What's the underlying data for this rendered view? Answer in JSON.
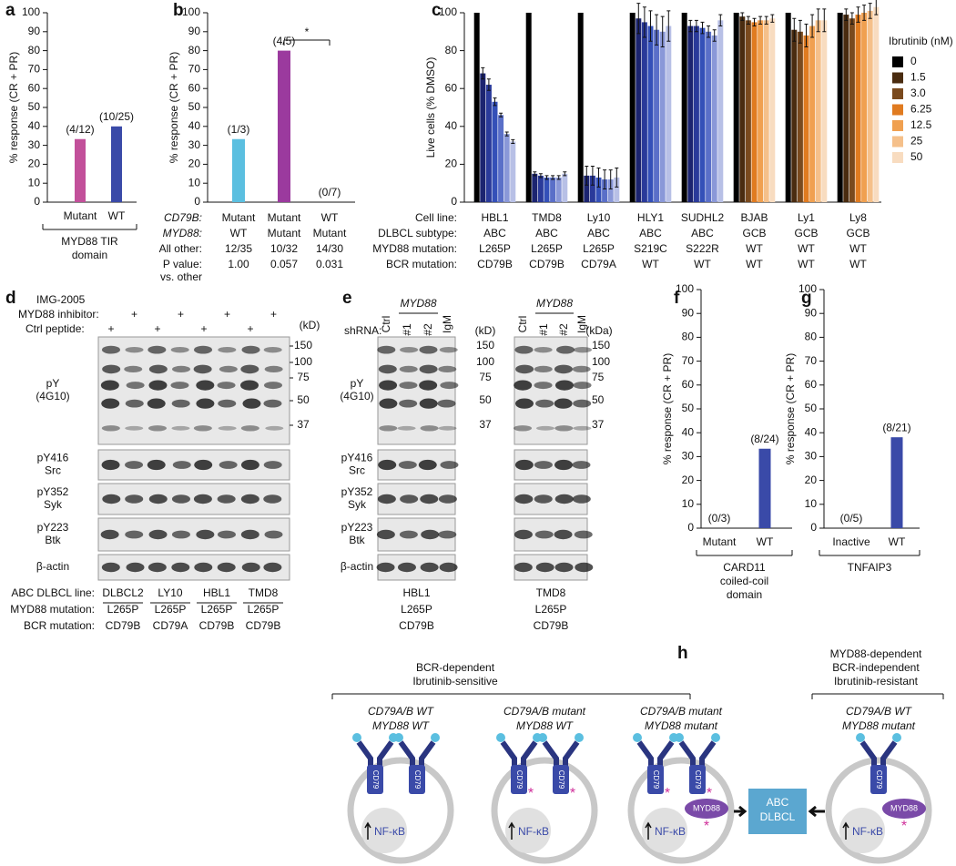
{
  "panel_labels": [
    "a",
    "b",
    "c",
    "d",
    "e",
    "f",
    "g",
    "h"
  ],
  "chart_data": [
    {
      "type": "bar",
      "y_label": "% response (CR + PR)",
      "categories": [
        "Mutant",
        "WT"
      ],
      "values": [
        33.3,
        40
      ],
      "annotations": [
        "(4/12)",
        "(10/25)"
      ],
      "colors": [
        "#c2509a",
        "#3a4aa8"
      ],
      "ylim": [
        0,
        100
      ],
      "yticks": [
        0,
        10,
        20,
        30,
        40,
        50,
        60,
        70,
        80,
        90,
        100
      ],
      "group_label": [
        "MYD88 TIR",
        "domain"
      ]
    },
    {
      "type": "bar",
      "y_label": "% response (CR + PR)",
      "values": [
        33.3,
        80,
        0
      ],
      "annotations": [
        "(1/3)",
        "(4/5)",
        "(0/7)"
      ],
      "colors": [
        "#5bbfe0",
        "#9b3a9e",
        "#444444"
      ],
      "ylim": [
        0,
        100
      ],
      "yticks": [
        0,
        10,
        20,
        30,
        40,
        50,
        60,
        70,
        80,
        90,
        100
      ],
      "significance": "*",
      "table": [
        {
          "label": [
            "CD79B:"
          ],
          "cells": [
            "Mutant",
            "Mutant",
            "WT"
          ]
        },
        {
          "label": [
            "MYD88:"
          ],
          "cells": [
            "WT",
            "Mutant",
            "Mutant"
          ]
        },
        {
          "label": [
            "All other:"
          ],
          "cells": [
            "12/35",
            "10/32",
            "14/30"
          ]
        },
        {
          "label": [
            "P value:",
            "vs. other"
          ],
          "cells": [
            "1.00",
            "0.057",
            "0.031"
          ]
        }
      ]
    },
    {
      "type": "grouped_bar",
      "y_label": "Live cells (% DMSO)",
      "ylim": [
        0,
        100
      ],
      "yticks": [
        0,
        20,
        40,
        60,
        80,
        100
      ],
      "legend_title": "Ibrutinib (nM)",
      "table": [
        {
          "label": [
            "Cell line:"
          ],
          "cells": [
            "HBL1",
            "TMD8",
            "Ly10",
            "HLY1",
            "SUDHL2",
            "BJAB",
            "Ly1",
            "Ly8"
          ]
        },
        {
          "label": [
            "DLBCL subtype:"
          ],
          "cells": [
            "ABC",
            "ABC",
            "ABC",
            "ABC",
            "ABC",
            "GCB",
            "GCB",
            "GCB"
          ]
        },
        {
          "label": [
            "MYD88 mutation:"
          ],
          "cells": [
            "L265P",
            "L265P",
            "L265P",
            "S219C",
            "S222R",
            "WT",
            "WT",
            "WT"
          ]
        },
        {
          "label": [
            "BCR mutation:"
          ],
          "cells": [
            "CD79B",
            "CD79B",
            "CD79A",
            "WT",
            "WT",
            "WT",
            "WT",
            "WT"
          ]
        }
      ],
      "series": [
        {
          "name": "0",
          "color": "#000000",
          "colors": {
            "ABC": "#000000",
            "GCB": "#000000"
          },
          "values": [
            100,
            100,
            100,
            100,
            100,
            100,
            100,
            100
          ],
          "errors": [
            0,
            0,
            0,
            0,
            0,
            0,
            0,
            0
          ]
        },
        {
          "name": "1.5",
          "color": "#4a2c10",
          "colors": {
            "ABC": "#1c2470",
            "GCB": "#4a2c10"
          },
          "values": [
            68,
            15,
            14,
            97,
            93,
            98,
            91,
            99
          ],
          "errors": [
            3,
            1,
            5,
            8,
            3,
            2,
            6,
            3
          ]
        },
        {
          "name": "3.0",
          "color": "#7a4a1e",
          "colors": {
            "ABC": "#2a3a9a",
            "GCB": "#7a4a1e"
          },
          "values": [
            62,
            14,
            14,
            95,
            93,
            96,
            90,
            97
          ],
          "errors": [
            3,
            1,
            5,
            8,
            3,
            2,
            6,
            3
          ]
        },
        {
          "name": "6.25",
          "color": "#e07b20",
          "colors": {
            "ABC": "#3450b8",
            "GCB": "#e07b20"
          },
          "values": [
            53,
            13,
            13,
            93,
            92,
            95,
            88,
            99
          ],
          "errors": [
            2,
            1,
            5,
            8,
            3,
            2,
            6,
            4
          ]
        },
        {
          "name": "12.5",
          "color": "#f0a050",
          "colors": {
            "ABC": "#5a6fc8",
            "GCB": "#f0a050"
          },
          "values": [
            46,
            13,
            12,
            91,
            90,
            96,
            93,
            100
          ],
          "errors": [
            1,
            1,
            5,
            8,
            3,
            2,
            6,
            4
          ]
        },
        {
          "name": "25",
          "color": "#f5c08a",
          "colors": {
            "ABC": "#8a98d8",
            "GCB": "#f5c08a"
          },
          "values": [
            36,
            13,
            12,
            90,
            88,
            96,
            96,
            101
          ],
          "errors": [
            1,
            1,
            5,
            8,
            3,
            2,
            6,
            4
          ]
        },
        {
          "name": "50",
          "color": "#f8dcc0",
          "colors": {
            "ABC": "#b8c0e6",
            "GCB": "#f8dcc0"
          },
          "values": [
            32,
            15,
            13,
            93,
            96,
            97,
            96,
            103
          ],
          "errors": [
            1,
            1,
            5,
            8,
            3,
            2,
            6,
            4
          ]
        }
      ]
    },
    {
      "type": "bar",
      "y_label": "% response (CR + PR)",
      "categories": [
        "Mutant",
        "WT"
      ],
      "values": [
        0,
        33.3
      ],
      "annotations": [
        "(0/3)",
        "(8/24)"
      ],
      "colors": [
        "#3a4aa8",
        "#3a4aa8"
      ],
      "ylim": [
        0,
        100
      ],
      "yticks": [
        0,
        10,
        20,
        30,
        40,
        50,
        60,
        70,
        80,
        90,
        100
      ],
      "group_label": [
        "CARD11",
        "coiled-coil",
        "domain"
      ]
    },
    {
      "type": "bar",
      "y_label": "% response (CR + PR)",
      "categories": [
        "Inactive",
        "WT"
      ],
      "values": [
        0,
        38.1
      ],
      "annotations": [
        "(0/5)",
        "(8/21)"
      ],
      "colors": [
        "#3a4aa8",
        "#3a4aa8"
      ],
      "ylim": [
        0,
        100
      ],
      "yticks": [
        0,
        10,
        20,
        30,
        40,
        50,
        60,
        70,
        80,
        90,
        100
      ],
      "group_label": [
        "TNFAIP3"
      ]
    }
  ],
  "blot_d": {
    "treatments": [
      {
        "label": "IMG-2005",
        "marks": []
      },
      {
        "label": "MYD88 inhibitor:",
        "marks": [
          "+",
          "+",
          "+",
          "+"
        ]
      },
      {
        "label": "Ctrl peptide:",
        "marks": [
          "+",
          "+",
          "+",
          "+"
        ]
      }
    ],
    "unit": "(kD)",
    "markers": [
      "150",
      "100",
      "75",
      "50",
      "37"
    ],
    "rows": [
      [
        "pY",
        "(4G10)"
      ],
      [
        "pY416",
        "Src"
      ],
      [
        "pY352",
        "Syk"
      ],
      [
        "pY223",
        "Btk"
      ],
      [
        "β-actin"
      ]
    ],
    "table": [
      {
        "label": "ABC DLBCL line:",
        "cells": [
          "DLBCL2",
          "LY10",
          "HBL1",
          "TMD8"
        ]
      },
      {
        "label": "MYD88 mutation:",
        "cells": [
          "L265P",
          "L265P",
          "L265P",
          "L265P"
        ]
      },
      {
        "label": "BCR mutation:",
        "cells": [
          "CD79B",
          "CD79A",
          "CD79B",
          "CD79B"
        ]
      }
    ]
  },
  "blot_e": {
    "shrna_label": "shRNA:",
    "gene": "MYD88",
    "lanes": [
      "Ctrl",
      "#1",
      "#2",
      "IgM"
    ],
    "units": [
      "(kD)",
      "(kDa)"
    ],
    "markers": [
      "150",
      "100",
      "75",
      "50",
      "37"
    ],
    "rows": [
      [
        "pY",
        "(4G10)"
      ],
      [
        "pY416",
        "Src"
      ],
      [
        "pY352",
        "Syk"
      ],
      [
        "pY223",
        "Btk"
      ],
      [
        "β-actin"
      ]
    ],
    "lines": [
      [
        "HBL1",
        "L265P",
        "CD79B"
      ],
      [
        "TMD8",
        "L265P",
        "CD79B"
      ]
    ]
  },
  "diagram_h": {
    "groups": [
      [
        "BCR-dependent",
        "Ibrutinib-sensitive"
      ],
      [
        "MYD88-dependent",
        "BCR-independent",
        "Ibrutinib-resistant"
      ]
    ],
    "cells": [
      [
        "CD79A/B WT",
        "MYD88 WT"
      ],
      [
        "CD79A/B mutant",
        "MYD88 WT"
      ],
      [
        "CD79A/B mutant",
        "MYD88 mutant"
      ],
      [
        "CD79A/B WT",
        "MYD88 mutant"
      ]
    ],
    "receptor": "CD79",
    "nucleus": "NF-κB",
    "adaptor": "MYD88",
    "mutation_mark": "*",
    "outcome": [
      "ABC",
      "DLBCL"
    ]
  }
}
